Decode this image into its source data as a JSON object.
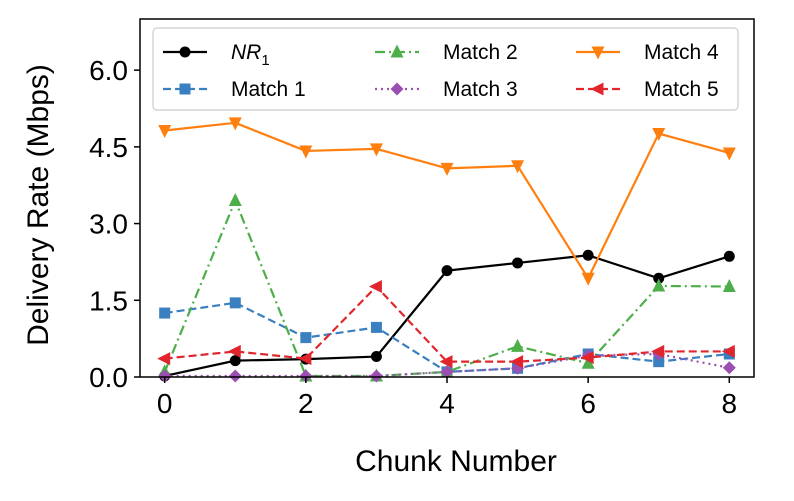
{
  "chart_data": {
    "type": "line",
    "xlabel": "Chunk Number",
    "ylabel": "Delivery Rate (Mbps)",
    "x": [
      0,
      1,
      2,
      3,
      4,
      5,
      6,
      7,
      8
    ],
    "xlim": [
      -0.35,
      8.35
    ],
    "ylim": [
      0,
      7.0
    ],
    "xticks": [
      "0",
      "2",
      "4",
      "6",
      "8"
    ],
    "xtick_values": [
      0,
      2,
      4,
      6,
      8
    ],
    "yticks": [
      "0.0",
      "1.5",
      "3.0",
      "4.5",
      "6.0"
    ],
    "ytick_values": [
      0,
      1.5,
      3.0,
      4.5,
      6.0
    ],
    "grid": false,
    "legend": {
      "placement": "top",
      "columns": 3
    },
    "series": [
      {
        "name": "NR",
        "subscript": "1",
        "color": "#000000",
        "marker": "circle",
        "dash": "solid",
        "values": [
          0.02,
          0.32,
          0.35,
          0.4,
          2.08,
          2.23,
          2.38,
          1.93,
          2.36
        ]
      },
      {
        "name": "Match 1",
        "color": "#3a7fc0",
        "marker": "square",
        "dash": "dashed",
        "values": [
          1.25,
          1.45,
          0.77,
          0.97,
          0.1,
          0.17,
          0.45,
          0.3,
          0.45
        ]
      },
      {
        "name": "Match 2",
        "color": "#4dae4a",
        "marker": "triangle-up",
        "dash": "dashdot",
        "values": [
          0.1,
          3.45,
          0.02,
          0.02,
          0.1,
          0.6,
          0.27,
          1.78,
          1.77
        ]
      },
      {
        "name": "Match 3",
        "color": "#9b4fb0",
        "marker": "diamond",
        "dash": "dotted",
        "values": [
          0.02,
          0.02,
          0.02,
          0.02,
          0.1,
          0.17,
          0.42,
          0.45,
          0.18
        ]
      },
      {
        "name": "Match 4",
        "color": "#ff7f0e",
        "marker": "triangle-down",
        "dash": "solid",
        "values": [
          4.82,
          4.97,
          4.42,
          4.46,
          4.08,
          4.13,
          1.93,
          4.76,
          4.38
        ]
      },
      {
        "name": "Match 5",
        "color": "#e0262c",
        "marker": "triangle-left",
        "dash": "dashed",
        "values": [
          0.36,
          0.5,
          0.36,
          1.77,
          0.3,
          0.3,
          0.38,
          0.5,
          0.5
        ]
      }
    ]
  }
}
